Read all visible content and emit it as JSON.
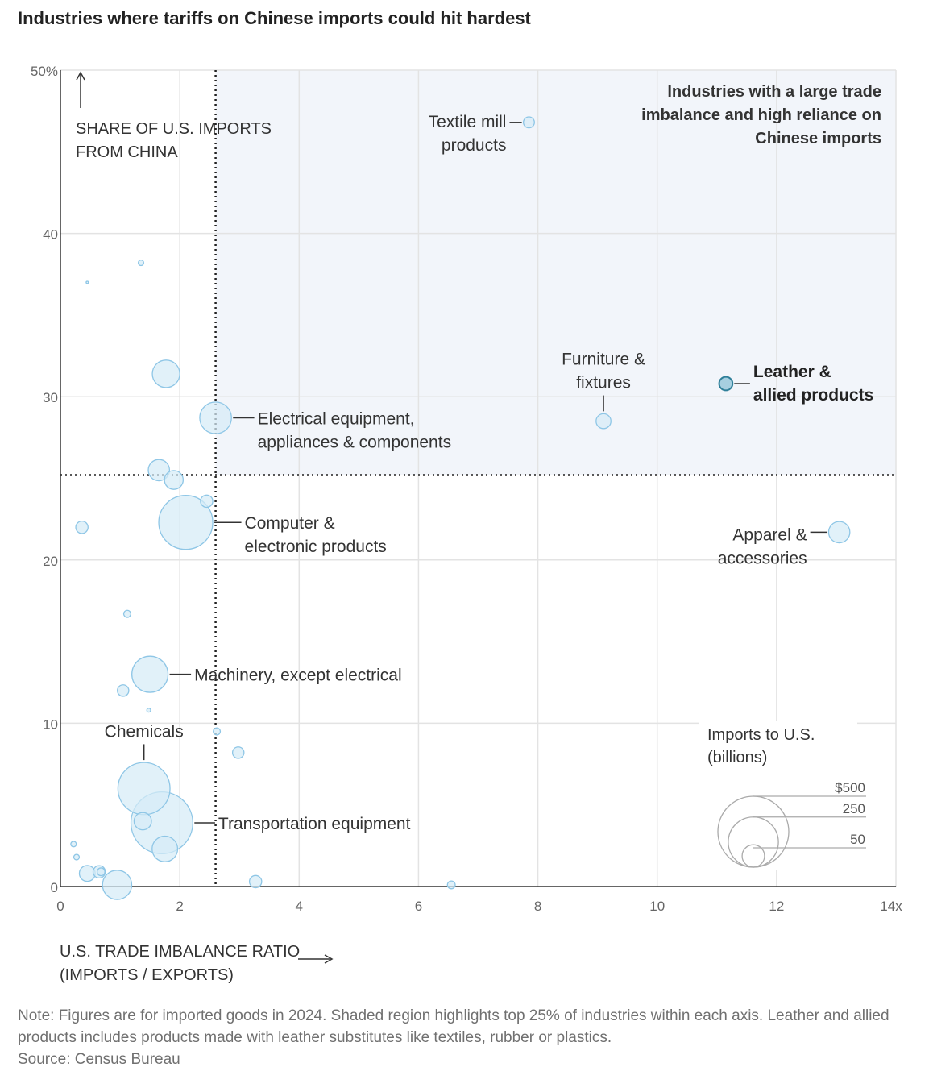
{
  "title": "Industries where tariffs on Chinese imports could hit hardest",
  "note": "Note: Figures are for imported goods in 2024. Shaded region highlights top 25% of industries within each axis. Leather and allied products includes products made with leather substitutes like textiles, rubber or plastics.",
  "source": "Source: Census Bureau",
  "colors": {
    "bubble_fill": "#d6ebf7",
    "bubble_stroke": "#8ec6e6",
    "highlight_fill": "#a6cfe0",
    "highlight_stroke": "#2f7f99",
    "shade": "#f2f5fa",
    "grid": "#e3e3e3"
  },
  "chart_data": {
    "type": "scatter",
    "title": "Industries where tariffs on Chinese imports could hit hardest",
    "ylabel_lines": [
      "SHARE OF U.S. IMPORTS",
      "FROM CHINA"
    ],
    "xlabel_lines": [
      "U.S. TRADE IMBALANCE RATIO",
      "(IMPORTS / EXPORTS)"
    ],
    "xlim": [
      0,
      14
    ],
    "ylim": [
      0,
      50
    ],
    "xticks": [
      {
        "value": 0,
        "label": "0"
      },
      {
        "value": 2,
        "label": "2"
      },
      {
        "value": 4,
        "label": "4"
      },
      {
        "value": 6,
        "label": "6"
      },
      {
        "value": 8,
        "label": "8"
      },
      {
        "value": 10,
        "label": "10"
      },
      {
        "value": 12,
        "label": "12"
      },
      {
        "value": 14,
        "label": "14x"
      }
    ],
    "yticks": [
      {
        "value": 0,
        "label": "0"
      },
      {
        "value": 10,
        "label": "10"
      },
      {
        "value": 20,
        "label": "20"
      },
      {
        "value": 30,
        "label": "30"
      },
      {
        "value": 40,
        "label": "40"
      },
      {
        "value": 50,
        "label": "50%"
      }
    ],
    "grid": true,
    "thresholds": {
      "x": 2.6,
      "y": 25.2
    },
    "shaded_region_label_lines": [
      "Industries with a large trade",
      "imbalance and high reliance on",
      "Chinese imports"
    ],
    "size_legend": {
      "title_lines": [
        "Imports to U.S.",
        "(billions)"
      ],
      "entries": [
        {
          "value": 500,
          "label": "$500"
        },
        {
          "value": 250,
          "label": "250"
        },
        {
          "value": 50,
          "label": "50"
        }
      ]
    },
    "points": [
      {
        "name": "Textile mill products",
        "x": 7.85,
        "y": 46.8,
        "imports": 12,
        "label_lines": [
          "Textile mill",
          "products"
        ],
        "label_anchor": "end",
        "label_dx": -28,
        "label_dy": 6
      },
      {
        "name": "Leather & allied products",
        "x": 11.15,
        "y": 30.8,
        "imports": 18,
        "highlight": true,
        "label_lines": [
          "Leather &",
          "allied products"
        ],
        "label_anchor": "start",
        "label_dx": 34,
        "label_dy": -8
      },
      {
        "name": "Furniture & fixtures",
        "x": 9.1,
        "y": 28.5,
        "imports": 22,
        "label_lines": [
          "Furniture &",
          "fixtures"
        ],
        "label_anchor": "middle",
        "label_dx": 0,
        "label_dy": -70
      },
      {
        "name": "Electrical equipment, appliances & components",
        "x": 2.6,
        "y": 28.7,
        "imports": 100,
        "label_lines": [
          "Electrical equipment,",
          "appliances & components"
        ],
        "label_anchor": "start",
        "label_dx": 52,
        "label_dy": 8
      },
      {
        "name": "Computer & electronic products",
        "x": 2.1,
        "y": 22.3,
        "imports": 290,
        "label_lines": [
          "Computer &",
          "electronic products"
        ],
        "label_anchor": "start",
        "label_dx": 73,
        "label_dy": 8
      },
      {
        "name": "Apparel & accessories",
        "x": 13.05,
        "y": 21.7,
        "imports": 45,
        "label_lines": [
          "Apparel &",
          "accessories"
        ],
        "label_anchor": "end",
        "label_dx": -40,
        "label_dy": 10
      },
      {
        "name": "Machinery, except electrical",
        "x": 1.5,
        "y": 13.0,
        "imports": 130,
        "label_lines": [
          "Machinery, except electrical"
        ],
        "label_anchor": "start",
        "label_dx": 55,
        "label_dy": 8
      },
      {
        "name": "Chemicals",
        "x": 1.4,
        "y": 6.0,
        "imports": 270,
        "label_lines": [
          "Chemicals"
        ],
        "label_anchor": "middle",
        "label_dx": 0,
        "label_dy": -64
      },
      {
        "name": "Transportation equipment",
        "x": 1.7,
        "y": 3.9,
        "imports": 380,
        "label_lines": [
          "Transportation equipment"
        ],
        "label_anchor": "start",
        "label_dx": 70,
        "label_dy": 8
      },
      {
        "x": 1.77,
        "y": 31.4,
        "imports": 75
      },
      {
        "x": 1.65,
        "y": 25.5,
        "imports": 45
      },
      {
        "x": 1.9,
        "y": 24.9,
        "imports": 35
      },
      {
        "x": 2.45,
        "y": 23.6,
        "imports": 15
      },
      {
        "x": 0.36,
        "y": 22.0,
        "imports": 15
      },
      {
        "x": 1.35,
        "y": 38.2,
        "imports": 3
      },
      {
        "x": 0.45,
        "y": 37.0,
        "imports": 0.2
      },
      {
        "x": 1.12,
        "y": 16.7,
        "imports": 5
      },
      {
        "x": 1.05,
        "y": 12.0,
        "imports": 13
      },
      {
        "x": 1.48,
        "y": 10.8,
        "imports": 1.5
      },
      {
        "x": 2.62,
        "y": 9.5,
        "imports": 5
      },
      {
        "x": 2.98,
        "y": 8.2,
        "imports": 13
      },
      {
        "x": 1.75,
        "y": 2.3,
        "imports": 65
      },
      {
        "x": 1.38,
        "y": 4.0,
        "imports": 30
      },
      {
        "x": 0.95,
        "y": 0.1,
        "imports": 85
      },
      {
        "x": 0.45,
        "y": 0.8,
        "imports": 25
      },
      {
        "x": 0.65,
        "y": 0.9,
        "imports": 15
      },
      {
        "x": 0.68,
        "y": 0.9,
        "imports": 6
      },
      {
        "x": 0.22,
        "y": 2.6,
        "imports": 3
      },
      {
        "x": 0.27,
        "y": 1.8,
        "imports": 3
      },
      {
        "x": 3.27,
        "y": 0.3,
        "imports": 15
      },
      {
        "x": 6.55,
        "y": 0.1,
        "imports": 6
      }
    ]
  }
}
